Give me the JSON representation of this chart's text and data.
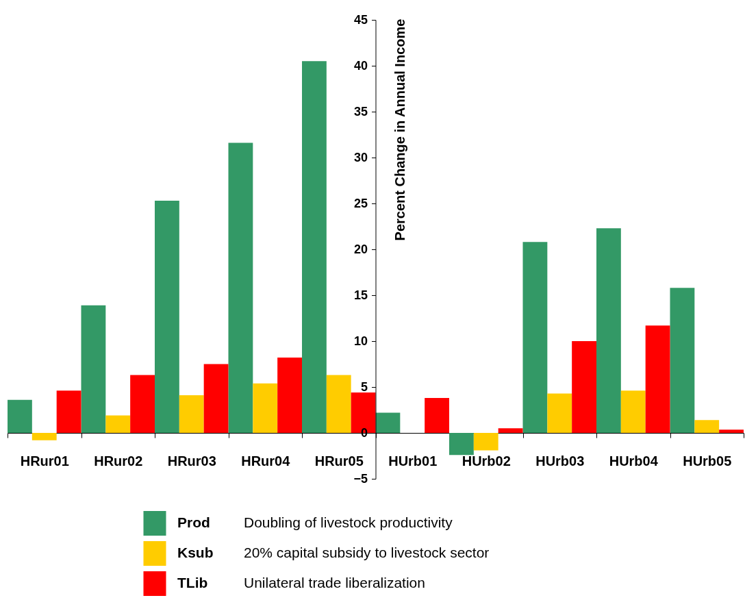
{
  "chart_data": {
    "type": "bar",
    "ylabel": "Percent Change in Annual Income",
    "categories": [
      "HRur01",
      "HRur02",
      "HRur03",
      "HRur04",
      "HRur05",
      "HUrb01",
      "HUrb02",
      "HUrb03",
      "HUrb04",
      "HUrb05"
    ],
    "series": [
      {
        "name": "Prod",
        "color": "#339966",
        "values": [
          3.6,
          13.9,
          25.3,
          31.6,
          40.5,
          2.2,
          -2.4,
          20.8,
          22.3,
          15.8
        ]
      },
      {
        "name": "Ksub",
        "color": "#ffcc00",
        "values": [
          -0.8,
          1.9,
          4.1,
          5.4,
          6.3,
          0,
          -1.9,
          4.3,
          4.6,
          1.4
        ]
      },
      {
        "name": "TLib",
        "color": "#ff0000",
        "values": [
          4.6,
          6.3,
          7.5,
          8.2,
          4.4,
          3.8,
          0.5,
          10.0,
          11.7,
          0.35
        ]
      }
    ],
    "annotations": [
      "Doubling of livestock productivity",
      "20% capital subsidy to livestock sector",
      "Unilateral trade liberalization"
    ],
    "ylim": [
      -5,
      45
    ],
    "yticks": [
      -5,
      0,
      5,
      10,
      15,
      20,
      25,
      30,
      35,
      40,
      45
    ],
    "grid": false,
    "legend": "bottom"
  }
}
